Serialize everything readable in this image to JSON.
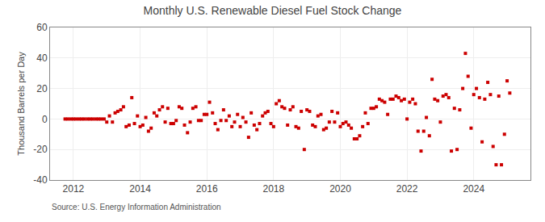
{
  "chart_data": {
    "type": "scatter",
    "title": "Monthly U.S. Renewable Diesel Fuel Stock Change",
    "ylabel": "Thousand Barrels per Day",
    "annotations": [
      "Source: U.S. Energy Information Administration"
    ],
    "color": "#CC0000",
    "marker": "square",
    "grid": true,
    "xlim": [
      2011.3,
      2025.7
    ],
    "xticks": [
      2012,
      2014,
      2016,
      2018,
      2020,
      2022,
      2024
    ],
    "ylim": [
      -40,
      60
    ],
    "yticks": [
      -40,
      -20,
      0,
      20,
      40,
      60
    ],
    "x": [
      2011.75,
      2011.83,
      2011.92,
      2012.0,
      2012.08,
      2012.17,
      2012.25,
      2012.33,
      2012.42,
      2012.5,
      2012.58,
      2012.67,
      2012.75,
      2012.83,
      2012.92,
      2013.0,
      2013.08,
      2013.17,
      2013.25,
      2013.33,
      2013.42,
      2013.5,
      2013.58,
      2013.67,
      2013.75,
      2013.83,
      2013.92,
      2014.0,
      2014.08,
      2014.17,
      2014.25,
      2014.33,
      2014.42,
      2014.5,
      2014.58,
      2014.67,
      2014.75,
      2014.83,
      2014.92,
      2015.0,
      2015.08,
      2015.17,
      2015.25,
      2015.33,
      2015.42,
      2015.5,
      2015.58,
      2015.67,
      2015.75,
      2015.83,
      2015.92,
      2016.0,
      2016.08,
      2016.17,
      2016.25,
      2016.33,
      2016.42,
      2016.5,
      2016.58,
      2016.67,
      2016.75,
      2016.83,
      2016.92,
      2017.0,
      2017.08,
      2017.17,
      2017.25,
      2017.33,
      2017.42,
      2017.5,
      2017.58,
      2017.67,
      2017.75,
      2017.83,
      2017.92,
      2018.0,
      2018.08,
      2018.17,
      2018.25,
      2018.33,
      2018.42,
      2018.5,
      2018.58,
      2018.67,
      2018.75,
      2018.83,
      2018.92,
      2019.0,
      2019.08,
      2019.17,
      2019.25,
      2019.33,
      2019.42,
      2019.5,
      2019.58,
      2019.67,
      2019.75,
      2019.83,
      2019.92,
      2020.0,
      2020.08,
      2020.17,
      2020.25,
      2020.33,
      2020.42,
      2020.5,
      2020.58,
      2020.67,
      2020.75,
      2020.83,
      2020.92,
      2021.0,
      2021.08,
      2021.17,
      2021.25,
      2021.33,
      2021.42,
      2021.5,
      2021.58,
      2021.67,
      2021.75,
      2021.83,
      2021.92,
      2022.0,
      2022.08,
      2022.17,
      2022.25,
      2022.33,
      2022.42,
      2022.5,
      2022.58,
      2022.67,
      2022.75,
      2022.83,
      2022.92,
      2023.0,
      2023.08,
      2023.17,
      2023.25,
      2023.33,
      2023.42,
      2023.5,
      2023.58,
      2023.67,
      2023.75,
      2023.83,
      2023.92,
      2024.0,
      2024.08,
      2024.17,
      2024.25,
      2024.33,
      2024.42,
      2024.5,
      2024.58,
      2024.67,
      2024.75,
      2024.83,
      2024.92,
      2025.0,
      2025.08
    ],
    "values": [
      0.0,
      0.0,
      0.0,
      0.0,
      0.0,
      0.0,
      0.0,
      0.0,
      0.0,
      0.0,
      0.0,
      0.0,
      0.0,
      0.0,
      0.0,
      -2.0,
      2.0,
      -2.0,
      4.0,
      5.0,
      6.0,
      8.0,
      -5.0,
      -4.0,
      14.0,
      -3.0,
      2.0,
      -5.0,
      -4.0,
      1.0,
      -8.0,
      -6.0,
      4.0,
      2.0,
      6.0,
      8.0,
      -2.0,
      7.0,
      -3.0,
      -3.0,
      -1.0,
      8.0,
      7.0,
      -4.0,
      -9.0,
      -2.0,
      7.0,
      8.0,
      -1.0,
      -1.0,
      3.0,
      3.0,
      11.0,
      4.0,
      -3.0,
      -7.0,
      -1.0,
      6.0,
      -1.0,
      2.0,
      -5.0,
      -2.0,
      3.0,
      -5.0,
      1.0,
      -2.0,
      -12.0,
      4.0,
      -4.0,
      -7.0,
      -3.0,
      2.0,
      4.0,
      5.0,
      -3.0,
      -5.0,
      10.0,
      12.0,
      8.0,
      7.0,
      -4.0,
      6.0,
      8.0,
      -5.0,
      -6.0,
      5.0,
      -20.0,
      6.0,
      5.0,
      -4.0,
      -5.0,
      2.0,
      3.0,
      -7.0,
      -6.0,
      -2.0,
      5.0,
      -2.0,
      4.0,
      -5.0,
      -3.0,
      -2.0,
      -4.0,
      -6.0,
      -13.0,
      -13.0,
      -11.0,
      -5.0,
      4.0,
      -3.0,
      7.0,
      7.0,
      8.0,
      13.0,
      12.0,
      11.0,
      3.0,
      13.0,
      13.0,
      15.0,
      14.0,
      12.0,
      13.0,
      0.0,
      11.0,
      13.0,
      10.0,
      -8.0,
      -21.0,
      -8.0,
      1.0,
      -11.0,
      26.0,
      13.0,
      12.0,
      -2.0,
      15.0,
      16.0,
      14.0,
      -21.0,
      7.0,
      -20.0,
      6.0,
      20.0,
      43.0,
      28.0,
      -6.0,
      16.0,
      20.0,
      14.0,
      -15.0,
      13.0,
      24.0,
      16.0,
      -18.0,
      -30.0,
      15.0,
      -30.0,
      -10.0,
      25.0,
      17.0
    ]
  }
}
